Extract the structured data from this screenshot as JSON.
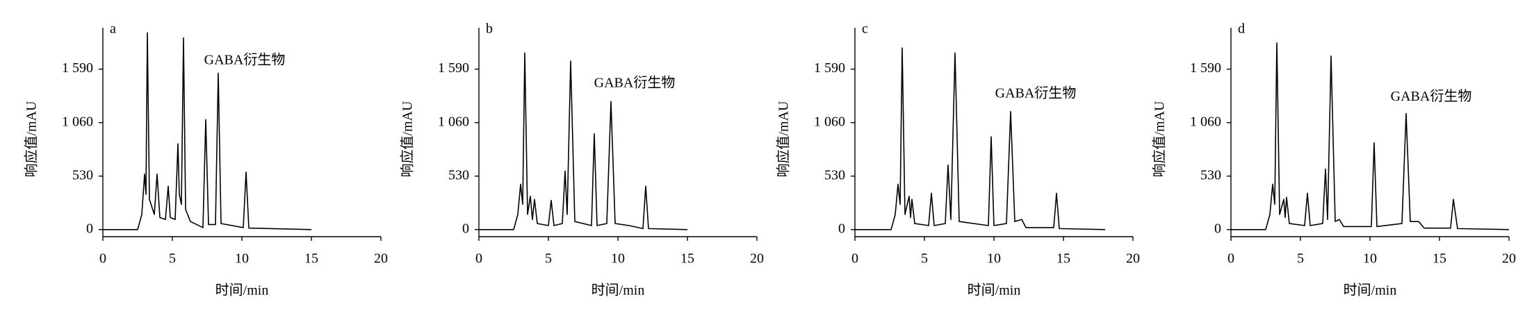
{
  "chart_data": [
    {
      "type": "line",
      "title": "a",
      "annotation": "GABA衍生物",
      "x_label": "时间/min",
      "y_label": "响应值/mAU",
      "color": "#000000",
      "xlim": [
        0,
        20
      ],
      "xticks": [
        0,
        5,
        10,
        15,
        20
      ],
      "ylim": [
        -70,
        2000
      ],
      "yticks": [
        0,
        530,
        {
          "value": 1060,
          "label": "1 060"
        },
        {
          "value": 1590,
          "label": "1 590"
        }
      ],
      "x": [
        0,
        2.5,
        2.8,
        3.0,
        3.1,
        3.2,
        3.35,
        3.7,
        3.9,
        4.1,
        4.5,
        4.7,
        4.85,
        5.2,
        5.4,
        5.5,
        5.65,
        5.8,
        5.95,
        6.3,
        7.2,
        7.4,
        7.6,
        8.1,
        8.3,
        8.5,
        10.1,
        10.3,
        10.5,
        15
      ],
      "values": [
        0,
        0,
        150,
        550,
        350,
        1950,
        300,
        150,
        550,
        120,
        100,
        430,
        120,
        100,
        850,
        350,
        250,
        1900,
        200,
        80,
        20,
        1090,
        50,
        50,
        1550,
        60,
        20,
        570,
        15,
        0
      ]
    },
    {
      "type": "line",
      "title": "b",
      "annotation": "GABA衍生物",
      "x_label": "时间/min",
      "y_label": "响应值/mAU",
      "color": "#000000",
      "xlim": [
        0,
        20
      ],
      "xticks": [
        0,
        5,
        10,
        15,
        20
      ],
      "ylim": [
        -70,
        2000
      ],
      "yticks": [
        0,
        530,
        {
          "value": 1060,
          "label": "1 060"
        },
        {
          "value": 1590,
          "label": "1 590"
        }
      ],
      "x": [
        0,
        2.5,
        2.8,
        3.0,
        3.15,
        3.3,
        3.5,
        3.7,
        3.85,
        4.0,
        4.2,
        5.0,
        5.2,
        5.4,
        6.0,
        6.2,
        6.35,
        6.6,
        6.9,
        8.1,
        8.3,
        8.5,
        9.2,
        9.5,
        9.8,
        10.8,
        11.8,
        12.0,
        12.2,
        15
      ],
      "values": [
        0,
        0,
        150,
        450,
        250,
        1750,
        150,
        330,
        100,
        300,
        60,
        40,
        290,
        40,
        60,
        580,
        150,
        1670,
        80,
        40,
        950,
        40,
        60,
        1270,
        60,
        40,
        10,
        430,
        10,
        0
      ]
    },
    {
      "type": "line",
      "title": "c",
      "annotation": "GABA衍生物",
      "x_label": "时间/min",
      "y_label": "响应值/mAU",
      "color": "#000000",
      "xlim": [
        0,
        20
      ],
      "xticks": [
        0,
        5,
        10,
        15,
        20
      ],
      "ylim": [
        -70,
        2000
      ],
      "yticks": [
        0,
        530,
        {
          "value": 1060,
          "label": "1 060"
        },
        {
          "value": 1590,
          "label": "1 590"
        }
      ],
      "x": [
        0,
        2.6,
        2.9,
        3.1,
        3.25,
        3.4,
        3.6,
        3.9,
        4.0,
        4.1,
        4.3,
        5.3,
        5.5,
        5.7,
        6.5,
        6.7,
        6.9,
        7.2,
        7.5,
        9.6,
        9.8,
        10.0,
        10.9,
        11.2,
        11.5,
        12.0,
        12.3,
        14.3,
        14.5,
        14.7,
        18
      ],
      "values": [
        0,
        0,
        150,
        450,
        250,
        1800,
        150,
        330,
        120,
        300,
        60,
        40,
        360,
        40,
        60,
        640,
        100,
        1750,
        80,
        40,
        920,
        40,
        60,
        1170,
        80,
        100,
        20,
        20,
        360,
        10,
        0
      ]
    },
    {
      "type": "line",
      "title": "d",
      "annotation": "GABA衍生物",
      "x_label": "时间/min",
      "y_label": "响应值/mAU",
      "color": "#000000",
      "xlim": [
        0,
        20
      ],
      "xticks": [
        0,
        5,
        10,
        15,
        20
      ],
      "ylim": [
        -70,
        2000
      ],
      "yticks": [
        0,
        530,
        {
          "value": 1060,
          "label": "1 060"
        },
        {
          "value": 1590,
          "label": "1 590"
        }
      ],
      "x": [
        0,
        2.5,
        2.8,
        3.0,
        3.15,
        3.3,
        3.5,
        3.8,
        3.9,
        4.0,
        4.2,
        5.3,
        5.5,
        5.7,
        6.6,
        6.8,
        6.95,
        7.2,
        7.5,
        7.8,
        8.1,
        10.1,
        10.3,
        10.5,
        12.3,
        12.6,
        12.9,
        13.5,
        13.9,
        15.8,
        16.0,
        16.3,
        20
      ],
      "values": [
        0,
        0,
        150,
        450,
        250,
        1850,
        150,
        300,
        120,
        320,
        60,
        40,
        360,
        40,
        60,
        600,
        100,
        1720,
        80,
        100,
        30,
        30,
        860,
        30,
        60,
        1150,
        80,
        80,
        15,
        15,
        300,
        10,
        0
      ]
    }
  ]
}
